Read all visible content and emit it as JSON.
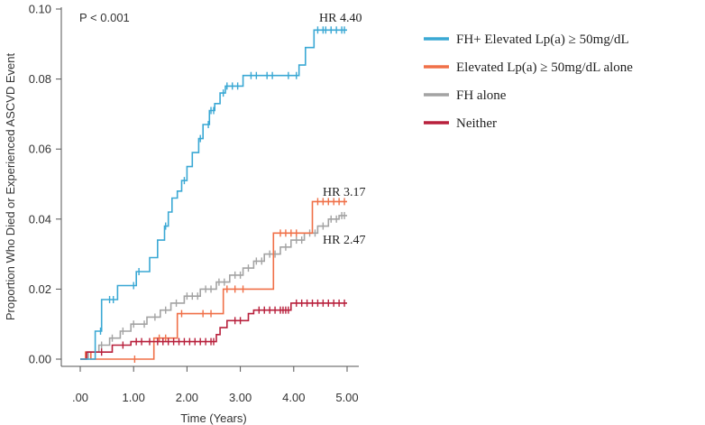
{
  "chart_data": {
    "type": "line",
    "title": "",
    "xlabel": "Time (Years)",
    "ylabel": "Proportion Who Died or Experienced ASCVD Event",
    "xlim": [
      0,
      5
    ],
    "ylim": [
      0,
      0.1
    ],
    "xticks": [
      ".00",
      "1.00",
      "2.00",
      "3.00",
      "4.00",
      "5.00"
    ],
    "yticks": [
      "0.00",
      "0.02",
      "0.04",
      "0.06",
      "0.08",
      "0.10"
    ],
    "grid": false,
    "legend_position": "right",
    "annotation": "P < 0.001",
    "series": [
      {
        "name": "FH+ Elevated Lp(a) ≥ 50mg/dL",
        "color": "#3aa8d4",
        "hr_label": "HR 4.40",
        "points": [
          [
            0,
            0
          ],
          [
            0.28,
            0
          ],
          [
            0.28,
            0.008
          ],
          [
            0.4,
            0.008
          ],
          [
            0.4,
            0.017
          ],
          [
            0.7,
            0.017
          ],
          [
            0.7,
            0.021
          ],
          [
            1.05,
            0.021
          ],
          [
            1.05,
            0.025
          ],
          [
            1.3,
            0.025
          ],
          [
            1.3,
            0.029
          ],
          [
            1.45,
            0.029
          ],
          [
            1.45,
            0.034
          ],
          [
            1.58,
            0.034
          ],
          [
            1.58,
            0.038
          ],
          [
            1.65,
            0.038
          ],
          [
            1.65,
            0.042
          ],
          [
            1.72,
            0.042
          ],
          [
            1.72,
            0.046
          ],
          [
            1.82,
            0.046
          ],
          [
            1.82,
            0.048
          ],
          [
            1.9,
            0.048
          ],
          [
            1.9,
            0.051
          ],
          [
            2.0,
            0.051
          ],
          [
            2.0,
            0.055
          ],
          [
            2.1,
            0.055
          ],
          [
            2.1,
            0.059
          ],
          [
            2.22,
            0.059
          ],
          [
            2.22,
            0.063
          ],
          [
            2.3,
            0.063
          ],
          [
            2.3,
            0.067
          ],
          [
            2.42,
            0.067
          ],
          [
            2.42,
            0.071
          ],
          [
            2.52,
            0.071
          ],
          [
            2.52,
            0.073
          ],
          [
            2.62,
            0.073
          ],
          [
            2.62,
            0.076
          ],
          [
            2.72,
            0.076
          ],
          [
            2.72,
            0.078
          ],
          [
            3.05,
            0.078
          ],
          [
            3.05,
            0.081
          ],
          [
            3.68,
            0.081
          ],
          [
            3.68,
            0.081
          ],
          [
            4.1,
            0.081
          ],
          [
            4.1,
            0.084
          ],
          [
            4.22,
            0.084
          ],
          [
            4.22,
            0.089
          ],
          [
            4.38,
            0.089
          ],
          [
            4.38,
            0.094
          ],
          [
            5.0,
            0.094
          ]
        ],
        "censor_x": [
          0.38,
          0.55,
          0.62,
          1.0,
          1.1,
          1.6,
          1.95,
          2.25,
          2.4,
          2.45,
          2.5,
          2.68,
          2.75,
          2.85,
          2.95,
          3.2,
          3.3,
          3.5,
          3.6,
          3.9,
          4.05,
          4.45,
          4.55,
          4.6,
          4.7,
          4.8,
          4.9,
          4.95
        ]
      },
      {
        "name": "Elevated Lp(a) ≥ 50mg/dL alone",
        "color": "#f07048",
        "hr_label": "HR 3.17",
        "points": [
          [
            0,
            0
          ],
          [
            0.1,
            0
          ],
          [
            0.1,
            0.002
          ],
          [
            0.2,
            0.002
          ],
          [
            0.2,
            0
          ],
          [
            1.38,
            0
          ],
          [
            1.38,
            0.006
          ],
          [
            1.82,
            0.006
          ],
          [
            1.82,
            0.013
          ],
          [
            2.68,
            0.013
          ],
          [
            2.68,
            0.02
          ],
          [
            3.62,
            0.02
          ],
          [
            3.62,
            0.036
          ],
          [
            4.35,
            0.036
          ],
          [
            4.35,
            0.045
          ],
          [
            5.0,
            0.045
          ]
        ],
        "censor_x": [
          1.02,
          1.48,
          1.6,
          1.9,
          2.3,
          2.45,
          2.75,
          2.9,
          3.05,
          3.75,
          3.85,
          3.95,
          4.05,
          4.45,
          4.55,
          4.65,
          4.75,
          4.85,
          4.95
        ]
      },
      {
        "name": "FH alone",
        "color": "#a3a3a3",
        "hr_label": "HR 2.47",
        "points": [
          [
            0,
            0
          ],
          [
            0.15,
            0
          ],
          [
            0.15,
            0.002
          ],
          [
            0.35,
            0.002
          ],
          [
            0.35,
            0.004
          ],
          [
            0.55,
            0.004
          ],
          [
            0.55,
            0.006
          ],
          [
            0.75,
            0.006
          ],
          [
            0.75,
            0.008
          ],
          [
            0.95,
            0.008
          ],
          [
            0.95,
            0.01
          ],
          [
            1.25,
            0.01
          ],
          [
            1.25,
            0.012
          ],
          [
            1.5,
            0.012
          ],
          [
            1.5,
            0.014
          ],
          [
            1.7,
            0.014
          ],
          [
            1.7,
            0.016
          ],
          [
            1.95,
            0.016
          ],
          [
            1.95,
            0.018
          ],
          [
            2.25,
            0.018
          ],
          [
            2.25,
            0.02
          ],
          [
            2.55,
            0.02
          ],
          [
            2.55,
            0.022
          ],
          [
            2.8,
            0.022
          ],
          [
            2.8,
            0.024
          ],
          [
            3.05,
            0.024
          ],
          [
            3.05,
            0.026
          ],
          [
            3.25,
            0.026
          ],
          [
            3.25,
            0.028
          ],
          [
            3.45,
            0.028
          ],
          [
            3.45,
            0.03
          ],
          [
            3.75,
            0.03
          ],
          [
            3.75,
            0.032
          ],
          [
            3.95,
            0.032
          ],
          [
            3.95,
            0.034
          ],
          [
            4.2,
            0.034
          ],
          [
            4.2,
            0.036
          ],
          [
            4.45,
            0.036
          ],
          [
            4.45,
            0.038
          ],
          [
            4.65,
            0.038
          ],
          [
            4.65,
            0.04
          ],
          [
            4.85,
            0.04
          ],
          [
            4.85,
            0.041
          ],
          [
            5.0,
            0.041
          ]
        ],
        "censor_x": [
          0.4,
          0.6,
          0.8,
          1.0,
          1.2,
          1.4,
          1.6,
          1.8,
          2.0,
          2.1,
          2.2,
          2.35,
          2.45,
          2.6,
          2.7,
          2.9,
          3.0,
          3.15,
          3.3,
          3.4,
          3.55,
          3.65,
          3.85,
          4.05,
          4.15,
          4.3,
          4.4,
          4.55,
          4.7,
          4.8,
          4.9,
          4.95
        ]
      },
      {
        "name": "Neither",
        "color": "#b8203c",
        "hr_label": "",
        "points": [
          [
            0,
            0
          ],
          [
            0.12,
            0
          ],
          [
            0.12,
            0.002
          ],
          [
            0.6,
            0.002
          ],
          [
            0.6,
            0.004
          ],
          [
            0.95,
            0.004
          ],
          [
            0.95,
            0.005
          ],
          [
            2.55,
            0.005
          ],
          [
            2.55,
            0.007
          ],
          [
            2.62,
            0.007
          ],
          [
            2.62,
            0.009
          ],
          [
            2.75,
            0.009
          ],
          [
            2.75,
            0.011
          ],
          [
            3.15,
            0.011
          ],
          [
            3.15,
            0.013
          ],
          [
            3.25,
            0.013
          ],
          [
            3.25,
            0.014
          ],
          [
            3.95,
            0.014
          ],
          [
            3.95,
            0.016
          ],
          [
            5.0,
            0.016
          ]
        ],
        "censor_x": [
          0.4,
          0.8,
          1.05,
          1.15,
          1.3,
          1.45,
          1.55,
          1.65,
          1.75,
          1.85,
          1.95,
          2.05,
          2.15,
          2.25,
          2.35,
          2.45,
          2.5,
          2.9,
          3.0,
          3.35,
          3.45,
          3.55,
          3.65,
          3.75,
          3.8,
          3.85,
          3.9,
          4.05,
          4.15,
          4.25,
          4.35,
          4.45,
          4.55,
          4.65,
          4.75,
          4.85,
          4.95
        ]
      }
    ]
  }
}
